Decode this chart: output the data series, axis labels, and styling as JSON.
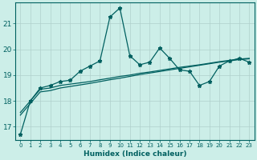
{
  "xlabel": "Humidex (Indice chaleur)",
  "background_color": "#cceee8",
  "grid_color": "#b0d0cc",
  "line_color": "#006060",
  "xlim": [
    -0.5,
    23.5
  ],
  "ylim": [
    16.5,
    21.8
  ],
  "yticks": [
    17,
    18,
    19,
    20,
    21
  ],
  "xticks": [
    0,
    1,
    2,
    3,
    4,
    5,
    6,
    7,
    8,
    9,
    10,
    11,
    12,
    13,
    14,
    15,
    16,
    17,
    18,
    19,
    20,
    21,
    22,
    23
  ],
  "jagged_x": [
    0,
    1,
    2,
    3,
    4,
    5,
    6,
    7,
    8,
    9,
    10,
    11,
    12,
    13,
    14,
    15,
    16,
    17,
    18,
    19,
    20,
    21,
    22,
    23
  ],
  "jagged_y": [
    16.7,
    18.0,
    18.5,
    18.6,
    18.75,
    18.8,
    19.15,
    19.35,
    19.55,
    21.25,
    21.6,
    19.75,
    19.4,
    19.5,
    20.05,
    19.65,
    19.2,
    19.15,
    18.6,
    18.75,
    19.35,
    19.55,
    19.65,
    19.5
  ],
  "trend1_x": [
    0,
    1,
    2,
    3,
    4,
    5,
    6,
    7,
    8,
    9,
    10,
    11,
    12,
    13,
    14,
    15,
    16,
    17,
    18,
    19,
    20,
    21,
    22,
    23
  ],
  "trend1_y": [
    17.55,
    18.0,
    18.45,
    18.5,
    18.6,
    18.65,
    18.7,
    18.75,
    18.82,
    18.88,
    18.95,
    19.0,
    19.07,
    19.12,
    19.18,
    19.24,
    19.3,
    19.35,
    19.4,
    19.46,
    19.52,
    19.57,
    19.62,
    19.65
  ],
  "trend2_x": [
    0,
    1,
    2,
    3,
    4,
    5,
    6,
    7,
    8,
    9,
    10,
    11,
    12,
    13,
    14,
    15,
    16,
    17,
    18,
    19,
    20,
    21,
    22,
    23
  ],
  "trend2_y": [
    17.45,
    17.9,
    18.35,
    18.4,
    18.5,
    18.56,
    18.62,
    18.68,
    18.75,
    18.82,
    18.88,
    18.95,
    19.02,
    19.08,
    19.14,
    19.2,
    19.26,
    19.32,
    19.38,
    19.44,
    19.5,
    19.55,
    19.6,
    19.63
  ],
  "xlabel_fontsize": 6.5,
  "ylabel_fontsize": 7,
  "xtick_fontsize": 5.0,
  "ytick_fontsize": 6.5,
  "linewidth": 0.9,
  "marker_size": 3.5
}
